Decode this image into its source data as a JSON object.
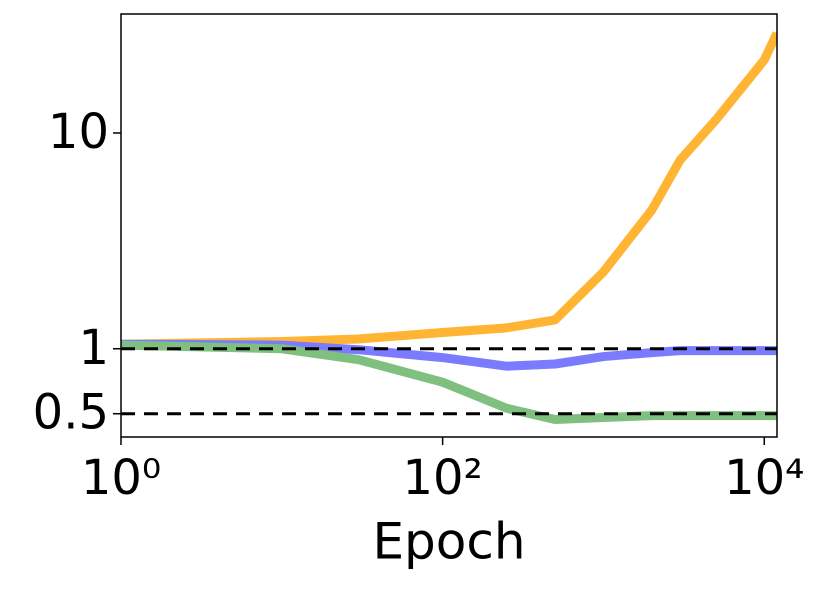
{
  "chart_data": {
    "type": "line",
    "x_label": "Epoch",
    "x": [
      1,
      10,
      30,
      100,
      250,
      500,
      1000,
      2000,
      3000,
      5000,
      10000,
      12000
    ],
    "series": [
      {
        "color": "#ffb533",
        "values": [
          1.05,
          1.08,
          1.11,
          1.19,
          1.25,
          1.36,
          2.27,
          4.4,
          7.5,
          11.5,
          21.8,
          29
        ]
      },
      {
        "color": "#7b7bff",
        "values": [
          1.05,
          1.04,
          0.99,
          0.91,
          0.83,
          0.85,
          0.92,
          0.96,
          0.98,
          0.98,
          0.98,
          0.98
        ]
      },
      {
        "color": "#7fbf7f",
        "values": [
          1.04,
          1.0,
          0.89,
          0.7,
          0.53,
          0.47,
          0.48,
          0.49,
          0.49,
          0.49,
          0.49,
          0.49
        ]
      }
    ],
    "xscale": "log",
    "yscale": "log",
    "xlim": [
      1,
      12000
    ],
    "ylim": [
      0.39,
      35.6
    ],
    "xticks": [
      {
        "value": 1,
        "label": "10⁰"
      },
      {
        "value": 100,
        "label": "10²"
      },
      {
        "value": 10000,
        "label": "10⁴"
      }
    ],
    "yticks": [
      0.5,
      1,
      10
    ],
    "hlines": [
      1,
      0.5
    ]
  }
}
